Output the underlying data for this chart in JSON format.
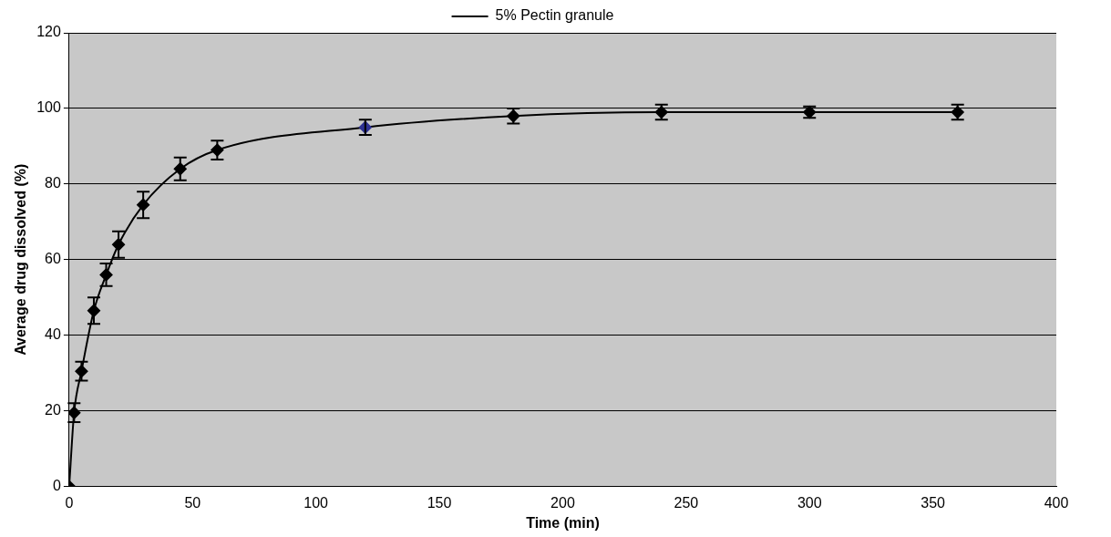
{
  "chart_data": {
    "type": "line",
    "xlabel": "Time (min)",
    "ylabel": "Average drug dissolved (%)",
    "x": [
      0,
      2,
      5,
      10,
      15,
      20,
      30,
      45,
      60,
      120,
      180,
      240,
      300,
      360
    ],
    "series": [
      {
        "name": "5% Pectin granule",
        "color": "#000000",
        "colors": [
          "#000000",
          "#000000",
          "#000000",
          "#000000",
          "#000000",
          "#000000",
          "#000000",
          "#000000",
          "#000000",
          "#2e3192",
          "#000000",
          "#000000",
          "#000000",
          "#000000"
        ],
        "values": [
          0,
          19.5,
          30.5,
          46.5,
          56,
          64,
          74.5,
          84,
          89,
          95,
          98,
          99,
          99,
          99
        ],
        "errors": [
          null,
          2.5,
          2.5,
          3.5,
          3,
          3.5,
          3.5,
          3,
          2.5,
          2,
          2,
          2,
          1.5,
          2
        ]
      }
    ],
    "xlim": [
      0,
      400
    ],
    "xticks": [
      0,
      50,
      100,
      150,
      200,
      250,
      300,
      350,
      400
    ],
    "ylim": [
      0,
      120
    ],
    "yticks": [
      0,
      20,
      40,
      60,
      80,
      100,
      120
    ],
    "grid": "y",
    "legend": "top",
    "marker": "diamond",
    "line_style": "solid"
  }
}
